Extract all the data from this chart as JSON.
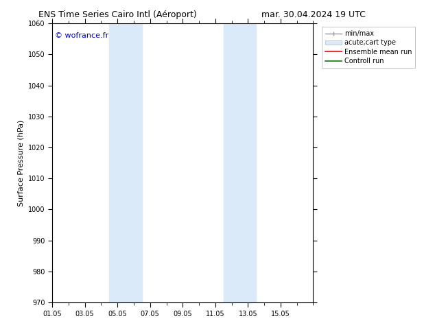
{
  "title_left": "ENS Time Series Cairo Intl (Aéroport)",
  "title_right": "mar. 30.04.2024 19 UTC",
  "ylabel": "Surface Pressure (hPa)",
  "xlim": [
    0,
    16
  ],
  "ylim": [
    970,
    1060
  ],
  "yticks": [
    970,
    980,
    990,
    1000,
    1010,
    1020,
    1030,
    1040,
    1050,
    1060
  ],
  "xtick_labels": [
    "01.05",
    "03.05",
    "05.05",
    "07.05",
    "09.05",
    "11.05",
    "13.05",
    "15.05"
  ],
  "xtick_positions": [
    0,
    2,
    4,
    6,
    8,
    10,
    12,
    14
  ],
  "watermark": "© wofrance.fr",
  "watermark_color": "#0000cc",
  "bg_color": "#ffffff",
  "plot_bg_color": "#ffffff",
  "shaded_regions": [
    {
      "xmin": 3.5,
      "xmax": 5.5,
      "color": "#daeaf8"
    },
    {
      "xmin": 10.5,
      "xmax": 12.5,
      "color": "#daeaf8"
    }
  ],
  "legend_entries": [
    {
      "label": "min/max",
      "color": "#999999",
      "style": "minmax"
    },
    {
      "label": "acute;cart type",
      "color": "#ccddee",
      "style": "fillbar"
    },
    {
      "label": "Ensemble mean run",
      "color": "#ff0000",
      "style": "line"
    },
    {
      "label": "Controll run",
      "color": "#008000",
      "style": "line"
    }
  ],
  "title_fontsize": 9,
  "tick_fontsize": 7,
  "ylabel_fontsize": 8,
  "legend_fontsize": 7,
  "watermark_fontsize": 8
}
